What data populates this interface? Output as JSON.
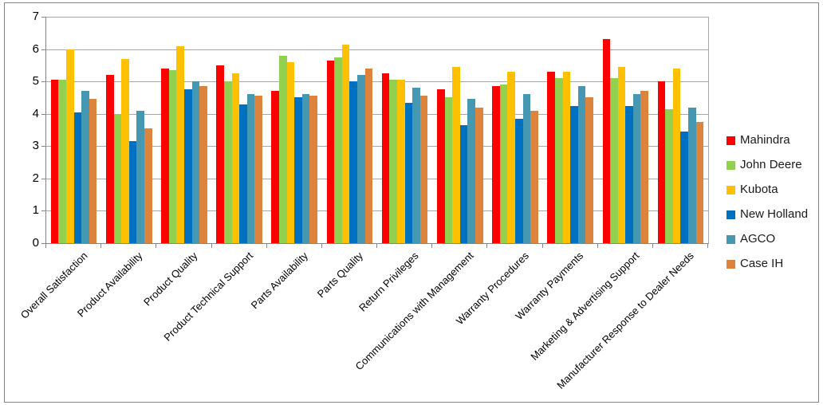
{
  "chart_data": {
    "type": "bar",
    "title": "",
    "xlabel": "",
    "ylabel": "",
    "ylim": [
      0,
      7
    ],
    "yticks": [
      0,
      1,
      2,
      3,
      4,
      5,
      6,
      7
    ],
    "grid": "horizontal",
    "legend_position": "right",
    "categories": [
      "Overall Satisfaction",
      "Product Availability",
      "Product Quality",
      "Product Technical Support",
      "Parts Availability",
      "Parts Quality",
      "Return Privileges",
      "Communications with Management",
      "Warranty Procedures",
      "Warranty Payments",
      "Marketing & Advertising Support",
      "Manufacturer Response to Dealer Needs"
    ],
    "series": [
      {
        "name": "Mahindra",
        "color": "#fe0000",
        "values": [
          5.05,
          5.2,
          5.4,
          5.5,
          4.7,
          5.65,
          5.25,
          4.75,
          4.85,
          5.3,
          6.3,
          5.0
        ]
      },
      {
        "name": "John Deere",
        "color": "#92d050",
        "values": [
          5.05,
          4.0,
          5.35,
          5.0,
          5.8,
          5.75,
          5.05,
          4.5,
          4.9,
          5.1,
          5.1,
          4.15
        ]
      },
      {
        "name": "Kubota",
        "color": "#ffc000",
        "values": [
          6.0,
          5.7,
          6.1,
          5.25,
          5.6,
          6.15,
          5.05,
          5.45,
          5.3,
          5.3,
          5.45,
          5.4
        ]
      },
      {
        "name": "New Holland",
        "color": "#0070c0",
        "values": [
          4.05,
          3.15,
          4.75,
          4.3,
          4.5,
          5.0,
          4.35,
          3.65,
          3.85,
          4.25,
          4.25,
          3.45
        ]
      },
      {
        "name": "AGCO",
        "color": "#4697b1",
        "values": [
          4.7,
          4.1,
          5.0,
          4.6,
          4.6,
          5.2,
          4.8,
          4.45,
          4.6,
          4.85,
          4.6,
          4.2
        ]
      },
      {
        "name": "Case IH",
        "color": "#dc833e",
        "values": [
          4.45,
          3.55,
          4.85,
          4.55,
          4.55,
          5.4,
          4.55,
          4.2,
          4.1,
          4.5,
          4.7,
          3.75
        ]
      }
    ],
    "style": {
      "axis_color": "#848484",
      "gridline_color": "#a7a7a7",
      "frame_border_color": "#848484",
      "text_color": "#000000"
    }
  }
}
